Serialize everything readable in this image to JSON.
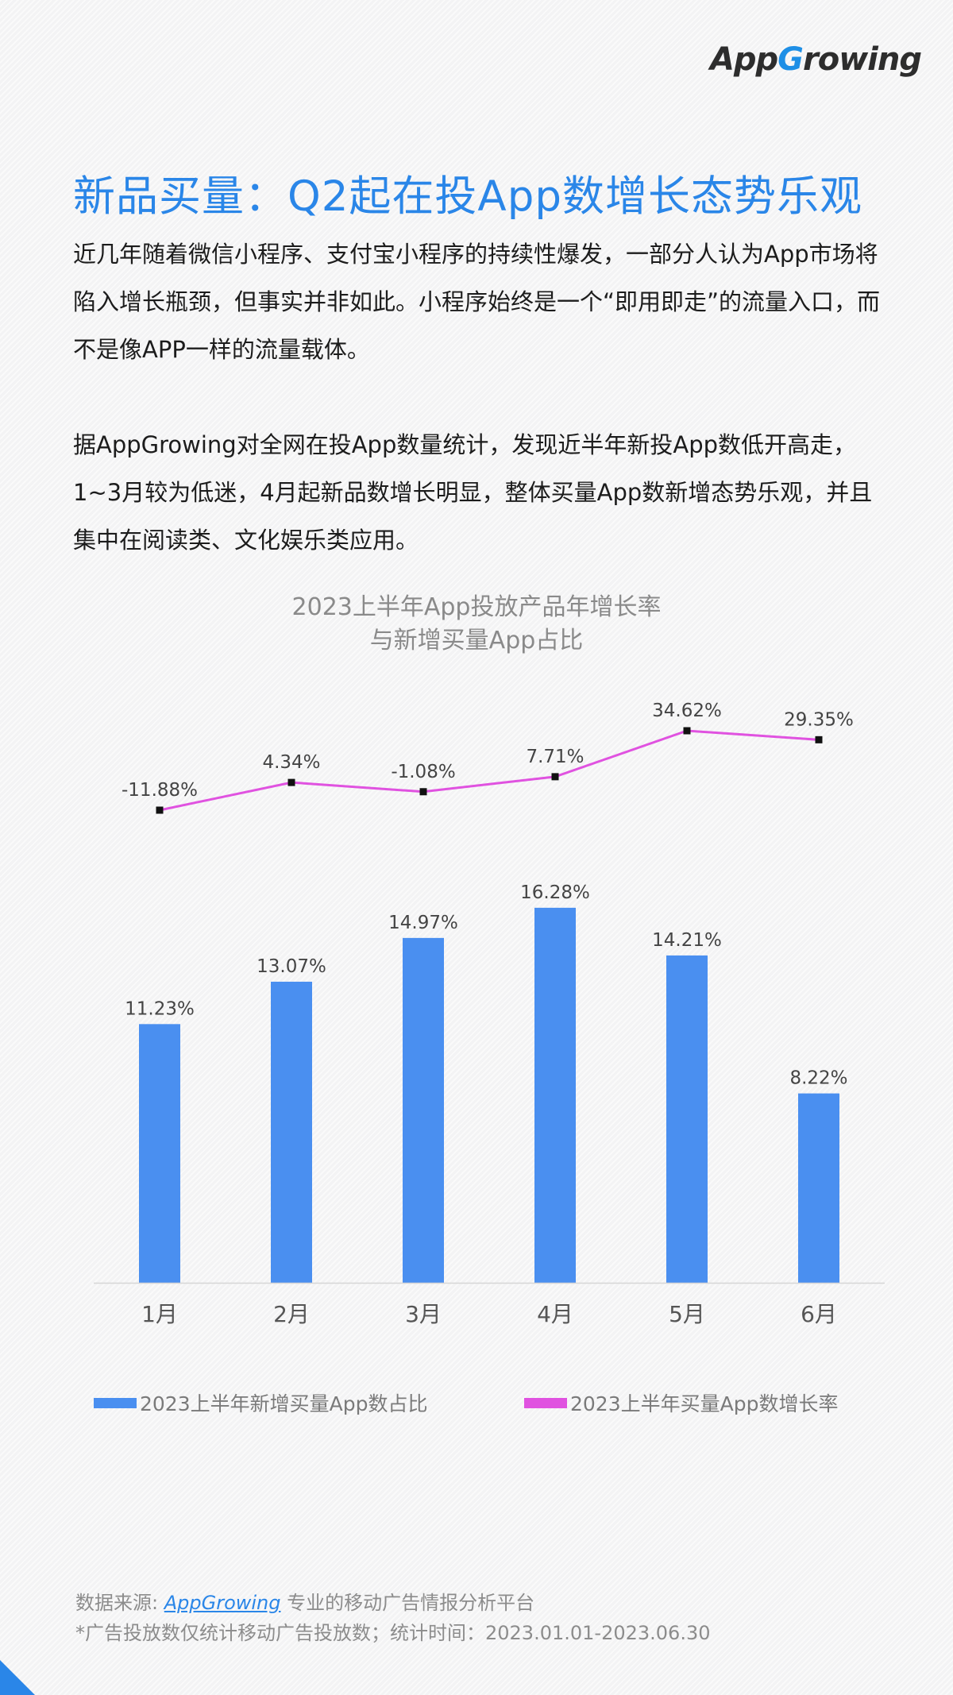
{
  "logo": {
    "text_a": "App",
    "text_g": "G",
    "text_b": "rowing"
  },
  "headline": "新品买量：Q2起在投App数增长态势乐观",
  "paragraphs": [
    "近几年随着微信小程序、支付宝小程序的持续性爆发，一部分人认为App市场将陷入增长瓶颈，但事实并非如此。小程序始终是一个“即用即走”的流量入口，而不是像APP一样的流量载体。",
    "据AppGrowing对全网在投App数量统计，发现近半年新投App数低开高走，1~3月较为低迷，4月起新品数增长明显，整体买量App数新增态势乐观，并且集中在阅读类、文化娱乐类应用。"
  ],
  "chart_data": {
    "type": "bar",
    "title_lines": [
      "2023上半年App投放产品年增长率",
      "与新增买量App占比"
    ],
    "categories": [
      "1月",
      "2月",
      "3月",
      "4月",
      "5月",
      "6月"
    ],
    "series": [
      {
        "name": "2023上半年新增买量App数占比",
        "type": "bar",
        "color": "#4a8ff0",
        "values": [
          11.23,
          13.07,
          14.97,
          16.28,
          14.21,
          8.22
        ],
        "labels": [
          "11.23%",
          "13.07%",
          "14.97%",
          "16.28%",
          "14.21%",
          "8.22%"
        ]
      },
      {
        "name": "2023上半年买量App数增长率",
        "type": "line",
        "color": "#e052e0",
        "values": [
          -11.88,
          4.34,
          -1.08,
          7.71,
          34.62,
          29.35
        ],
        "labels": [
          "-11.88%",
          "4.34%",
          "-1.08%",
          "7.71%",
          "34.62%",
          "29.35%"
        ]
      }
    ],
    "grid": false,
    "legend_position": "bottom"
  },
  "footer": {
    "source_prefix": "数据来源: ",
    "source_brand": "AppGrowing",
    "source_suffix": " 专业的移动广告情报分析平台",
    "note": "*广告投放数仅统计移动广告投放数；统计时间：2023.01.01-2023.06.30"
  }
}
